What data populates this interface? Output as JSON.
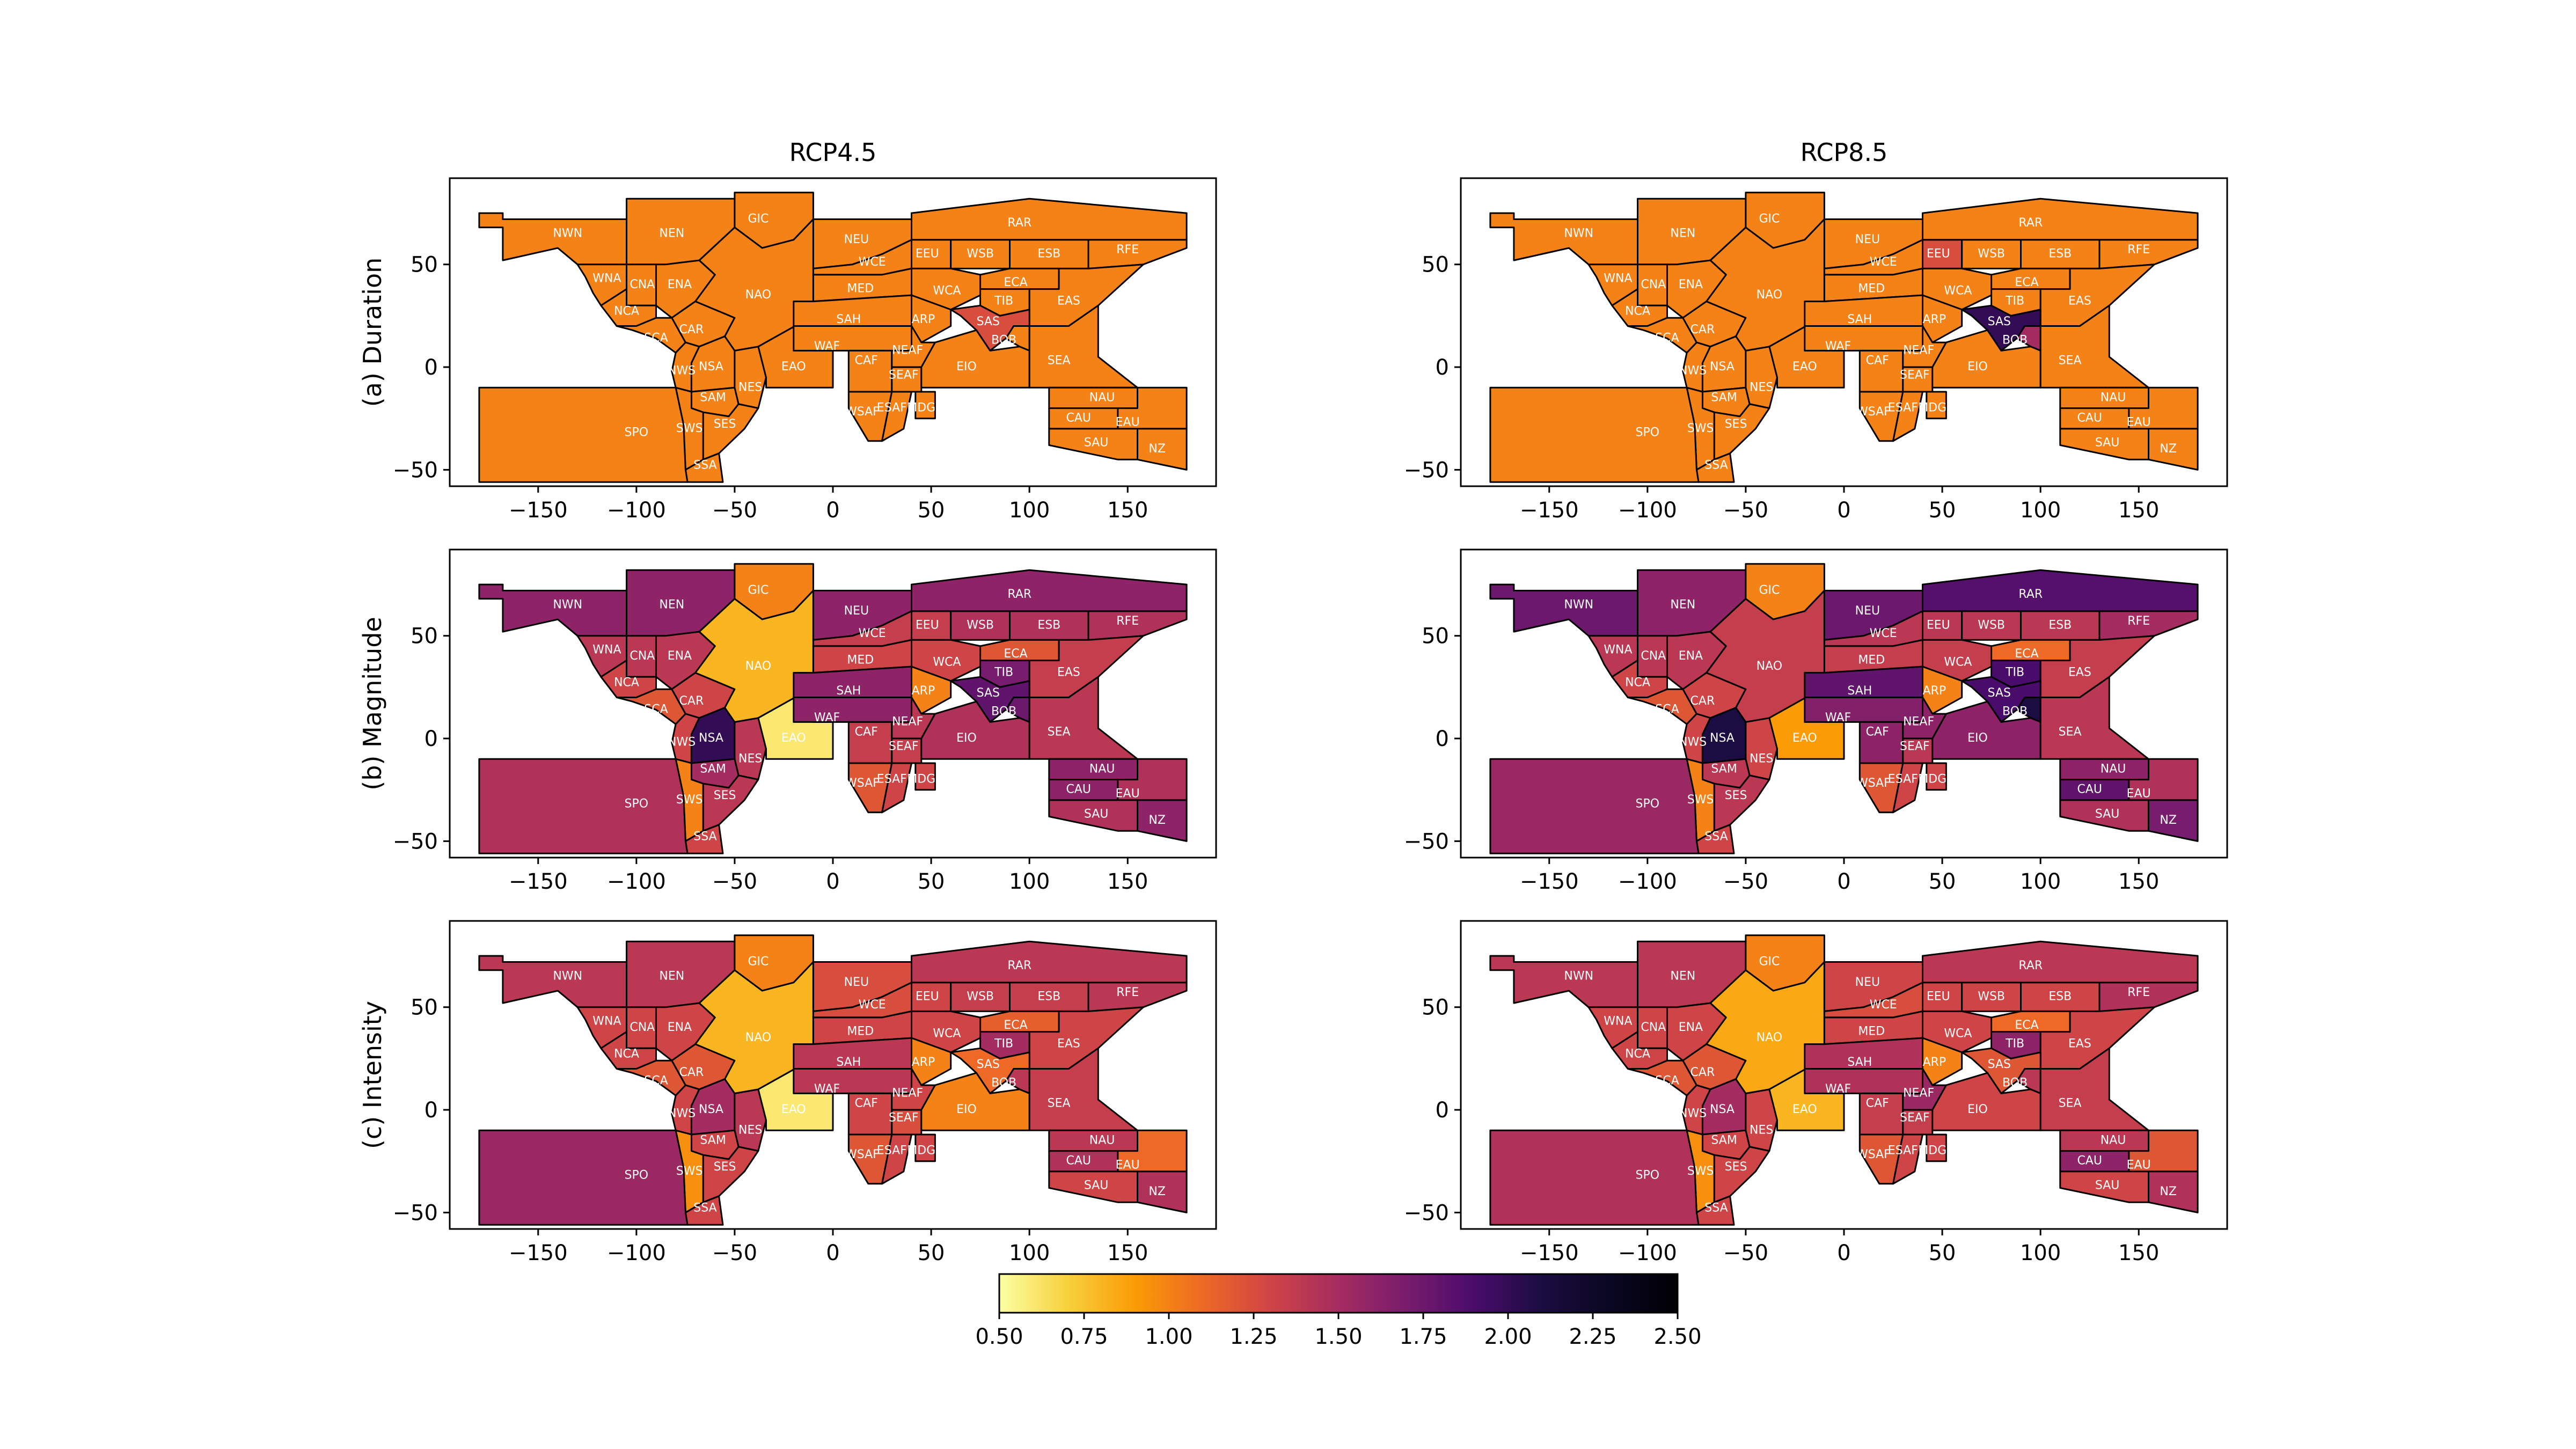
{
  "chart_data": {
    "type": "heatmap",
    "columns": [
      "RCP4.5",
      "RCP8.5"
    ],
    "rows": [
      "(a) Duration",
      "(b) Magnitude",
      "(c) Intensity"
    ],
    "xlim": [
      -195,
      195
    ],
    "ylim": [
      -58,
      92
    ],
    "xticks": [
      -150,
      -100,
      -50,
      0,
      50,
      100,
      150
    ],
    "xtick_labels": [
      "−150",
      "−100",
      "−50",
      "0",
      "50",
      "100",
      "150"
    ],
    "yticks": [
      -50,
      0,
      50
    ],
    "ytick_labels": [
      "−50",
      "0",
      "50"
    ],
    "colorbar": {
      "min": 0.5,
      "max": 2.5,
      "colormap": "inferno_r",
      "ticks": [
        0.5,
        0.75,
        1.0,
        1.25,
        1.5,
        1.75,
        2.0,
        2.25,
        2.5
      ],
      "tick_labels": [
        "0.50",
        "0.75",
        "1.00",
        "1.25",
        "1.50",
        "1.75",
        "2.00",
        "2.25",
        "2.50"
      ]
    },
    "region_codes": [
      "NWN",
      "NEN",
      "GIC",
      "WNA",
      "CNA",
      "ENA",
      "NCA",
      "SCA",
      "CAR",
      "NWS",
      "NSA",
      "SAM",
      "NES",
      "SWS",
      "SES",
      "SSA",
      "SPO",
      "NAO",
      "EAO",
      "NEU",
      "WCE",
      "EEU",
      "WSB",
      "ESB",
      "RFE",
      "RAR",
      "MED",
      "WCA",
      "ECA",
      "TIB",
      "EAS",
      "SAH",
      "ARP",
      "SAS",
      "BOB",
      "WAF",
      "CAF",
      "NEAF",
      "SEAF",
      "WSAF",
      "ESAF",
      "MDG",
      "EIO",
      "SEA",
      "NAU",
      "CAU",
      "EAU",
      "SAU",
      "NZ"
    ],
    "panels": [
      {
        "column": "RCP4.5",
        "row": "(a) Duration",
        "values": {
          "NWN": 1.0,
          "NEN": 1.0,
          "GIC": 1.0,
          "WNA": 1.0,
          "CNA": 1.0,
          "ENA": 1.0,
          "NCA": 1.0,
          "SCA": 1.0,
          "CAR": 1.0,
          "NWS": 1.0,
          "NSA": 1.0,
          "SAM": 1.0,
          "NES": 1.0,
          "SWS": 1.0,
          "SES": 1.0,
          "SSA": 1.0,
          "SPO": 1.0,
          "NAO": 1.0,
          "EAO": 1.0,
          "NEU": 1.0,
          "WCE": 1.0,
          "EEU": 1.0,
          "WSB": 1.0,
          "ESB": 1.0,
          "RFE": 1.0,
          "RAR": 1.0,
          "MED": 1.0,
          "WCA": 1.0,
          "ECA": 1.0,
          "TIB": 1.0,
          "EAS": 1.0,
          "SAH": 1.0,
          "ARP": 1.0,
          "SAS": 1.25,
          "BOB": 1.0,
          "WAF": 1.0,
          "CAF": 1.0,
          "NEAF": 1.0,
          "SEAF": 1.0,
          "WSAF": 1.0,
          "ESAF": 1.0,
          "MDG": 1.0,
          "EIO": 1.0,
          "SEA": 1.0,
          "NAU": 1.0,
          "CAU": 1.0,
          "EAU": 1.0,
          "SAU": 1.0,
          "NZ": 1.0
        }
      },
      {
        "column": "RCP8.5",
        "row": "(a) Duration",
        "values": {
          "NWN": 1.0,
          "NEN": 1.0,
          "GIC": 1.0,
          "WNA": 1.0,
          "CNA": 1.0,
          "ENA": 1.0,
          "NCA": 1.0,
          "SCA": 1.0,
          "CAR": 1.0,
          "NWS": 1.0,
          "NSA": 1.0,
          "SAM": 1.0,
          "NES": 1.0,
          "SWS": 1.0,
          "SES": 1.0,
          "SSA": 1.0,
          "SPO": 1.0,
          "NAO": 1.0,
          "EAO": 1.0,
          "NEU": 1.0,
          "WCE": 1.0,
          "EEU": 1.25,
          "WSB": 1.0,
          "ESB": 1.0,
          "RFE": 1.0,
          "RAR": 1.0,
          "MED": 1.0,
          "WCA": 1.0,
          "ECA": 1.0,
          "TIB": 1.0,
          "EAS": 1.0,
          "SAH": 1.0,
          "ARP": 1.0,
          "SAS": 2.0,
          "BOB": 1.5,
          "WAF": 1.0,
          "CAF": 1.0,
          "NEAF": 1.0,
          "SEAF": 1.0,
          "WSAF": 1.0,
          "ESAF": 1.0,
          "MDG": 1.0,
          "EIO": 1.0,
          "SEA": 1.0,
          "NAU": 1.0,
          "CAU": 1.0,
          "EAU": 1.0,
          "SAU": 1.0,
          "NZ": 1.0
        }
      },
      {
        "column": "RCP4.5",
        "row": "(b) Magnitude",
        "values": {
          "NWN": 1.6,
          "NEN": 1.6,
          "GIC": 1.0,
          "WNA": 1.4,
          "CNA": 1.4,
          "ENA": 1.4,
          "NCA": 1.3,
          "SCA": 1.2,
          "CAR": 1.3,
          "NWS": 1.3,
          "NSA": 2.0,
          "SAM": 1.5,
          "NES": 1.4,
          "SWS": 1.0,
          "SES": 1.4,
          "SSA": 1.3,
          "SPO": 1.45,
          "NAO": 0.8,
          "EAO": 0.6,
          "NEU": 1.6,
          "WCE": 1.35,
          "EEU": 1.35,
          "WSB": 1.45,
          "ESB": 1.45,
          "RFE": 1.45,
          "RAR": 1.6,
          "MED": 1.3,
          "WCA": 1.3,
          "ECA": 1.2,
          "TIB": 1.7,
          "EAS": 1.35,
          "SAH": 1.6,
          "ARP": 1.0,
          "SAS": 1.8,
          "BOB": 1.75,
          "WAF": 1.6,
          "CAF": 1.35,
          "NEAF": 1.4,
          "SEAF": 1.35,
          "WSAF": 1.2,
          "ESAF": 1.3,
          "MDG": 1.3,
          "EIO": 1.45,
          "SEA": 1.4,
          "NAU": 1.6,
          "CAU": 1.6,
          "EAU": 1.45,
          "SAU": 1.45,
          "NZ": 1.6
        }
      },
      {
        "column": "RCP8.5",
        "row": "(b) Magnitude",
        "values": {
          "NWN": 1.75,
          "NEN": 1.6,
          "GIC": 1.0,
          "WNA": 1.4,
          "CNA": 1.4,
          "ENA": 1.4,
          "NCA": 1.3,
          "SCA": 1.2,
          "CAR": 1.3,
          "NWS": 1.3,
          "NSA": 2.1,
          "SAM": 1.4,
          "NES": 1.3,
          "SWS": 1.0,
          "SES": 1.4,
          "SSA": 1.3,
          "SPO": 1.55,
          "NAO": 1.35,
          "EAO": 0.9,
          "NEU": 1.75,
          "WCE": 1.4,
          "EEU": 1.4,
          "WSB": 1.4,
          "ESB": 1.4,
          "RFE": 1.5,
          "RAR": 1.85,
          "MED": 1.35,
          "WCA": 1.35,
          "ECA": 1.1,
          "TIB": 1.9,
          "EAS": 1.35,
          "SAH": 1.8,
          "ARP": 1.0,
          "SAS": 1.9,
          "BOB": 2.1,
          "WAF": 1.65,
          "CAF": 1.6,
          "NEAF": 1.6,
          "SEAF": 1.4,
          "WSAF": 1.2,
          "ESAF": 1.3,
          "MDG": 1.3,
          "EIO": 1.6,
          "SEA": 1.4,
          "NAU": 1.6,
          "CAU": 1.8,
          "EAU": 1.45,
          "SAU": 1.45,
          "NZ": 1.7
        }
      },
      {
        "column": "RCP4.5",
        "row": "(c) Intensity",
        "values": {
          "NWN": 1.4,
          "NEN": 1.4,
          "GIC": 1.0,
          "WNA": 1.3,
          "CNA": 1.3,
          "ENA": 1.3,
          "NCA": 1.3,
          "SCA": 1.2,
          "CAR": 1.2,
          "NWS": 1.3,
          "NSA": 1.5,
          "SAM": 1.3,
          "NES": 1.4,
          "SWS": 0.95,
          "SES": 1.3,
          "SSA": 1.3,
          "SPO": 1.55,
          "NAO": 0.8,
          "EAO": 0.6,
          "NEU": 1.25,
          "WCE": 1.25,
          "EEU": 1.3,
          "WSB": 1.35,
          "ESB": 1.35,
          "RFE": 1.4,
          "RAR": 1.4,
          "MED": 1.3,
          "WCA": 1.3,
          "ECA": 1.15,
          "TIB": 1.5,
          "EAS": 1.3,
          "SAH": 1.4,
          "ARP": 1.0,
          "SAS": 1.1,
          "BOB": 1.4,
          "WAF": 1.4,
          "CAF": 1.3,
          "NEAF": 1.3,
          "SEAF": 1.25,
          "WSAF": 1.2,
          "ESAF": 1.3,
          "MDG": 1.3,
          "EIO": 1.0,
          "SEA": 1.35,
          "NAU": 1.4,
          "CAU": 1.45,
          "EAU": 1.1,
          "SAU": 1.3,
          "NZ": 1.45
        }
      },
      {
        "column": "RCP8.5",
        "row": "(c) Intensity",
        "values": {
          "NWN": 1.4,
          "NEN": 1.4,
          "GIC": 1.0,
          "WNA": 1.3,
          "CNA": 1.3,
          "ENA": 1.3,
          "NCA": 1.3,
          "SCA": 1.2,
          "CAR": 1.2,
          "NWS": 1.3,
          "NSA": 1.5,
          "SAM": 1.3,
          "NES": 1.3,
          "SWS": 0.95,
          "SES": 1.3,
          "SSA": 1.3,
          "SPO": 1.45,
          "NAO": 0.85,
          "EAO": 0.8,
          "NEU": 1.3,
          "WCE": 1.25,
          "EEU": 1.3,
          "WSB": 1.3,
          "ESB": 1.3,
          "RFE": 1.45,
          "RAR": 1.4,
          "MED": 1.3,
          "WCA": 1.3,
          "ECA": 1.1,
          "TIB": 1.6,
          "EAS": 1.3,
          "SAH": 1.45,
          "ARP": 1.0,
          "SAS": 1.2,
          "BOB": 1.4,
          "WAF": 1.45,
          "CAF": 1.35,
          "NEAF": 1.55,
          "SEAF": 1.35,
          "WSAF": 1.2,
          "ESAF": 1.3,
          "MDG": 1.3,
          "EIO": 1.3,
          "SEA": 1.35,
          "NAU": 1.4,
          "CAU": 1.6,
          "EAU": 1.2,
          "SAU": 1.3,
          "NZ": 1.45
        }
      }
    ]
  }
}
